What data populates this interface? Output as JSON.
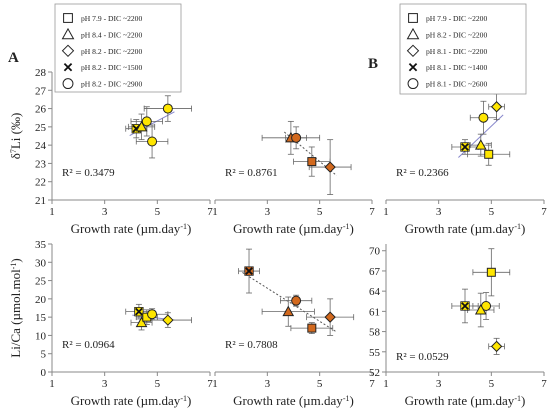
{
  "figure": {
    "panel_labels": [
      "A",
      "B"
    ],
    "legend_a": [
      {
        "marker": "square",
        "label": "pH 7.9 - DIC ~2200"
      },
      {
        "marker": "triangle",
        "label": "pH 8.4 - DIC ~2200"
      },
      {
        "marker": "diamond",
        "label": "pH 8.2 - DIC ~2200"
      },
      {
        "marker": "cross",
        "label": "pH 8.2 - DIC ~1500"
      },
      {
        "marker": "circle",
        "label": "pH 8.2 - DIC ~2900"
      }
    ],
    "legend_b": [
      {
        "marker": "square",
        "label": "pH 7.9 - DIC ~2200"
      },
      {
        "marker": "triangle",
        "label": "pH 8.2 - DIC ~2200"
      },
      {
        "marker": "diamond",
        "label": "pH 8.1 - DIC ~2200"
      },
      {
        "marker": "cross",
        "label": "pH 8.1 - DIC ~1400"
      },
      {
        "marker": "circle",
        "label": "pH 8.1 - DIC ~2600"
      }
    ],
    "colors": {
      "yellow": "#FFE600",
      "orange": "#D2691E",
      "axis": "#888888",
      "trend": "#8888cc"
    }
  },
  "chart_data": [
    {
      "type": "scatter",
      "panel": "A",
      "position": "top-left",
      "xlabel": "Growth rate (µm.day-1)",
      "ylabel": "δ7Li (‰)",
      "xlim": [
        1,
        7
      ],
      "ylim": [
        21,
        28
      ],
      "xticks": [
        1,
        3,
        5,
        7
      ],
      "yticks": [
        21,
        22,
        23,
        24,
        25,
        26,
        27,
        28
      ],
      "annotation": "R² = 0.3479",
      "fill": "yellow",
      "trend": true,
      "points": [
        {
          "marker": "circle",
          "x": 4.6,
          "y": 25.3,
          "xerr": 0.6,
          "yerr": 0.8
        },
        {
          "marker": "circle",
          "x": 5.4,
          "y": 26.0,
          "xerr": 0.9,
          "yerr": 0.7
        },
        {
          "marker": "circle",
          "x": 4.8,
          "y": 24.2,
          "xerr": 0.6,
          "yerr": 0.9
        },
        {
          "marker": "cross",
          "x": 4.2,
          "y": 24.9,
          "xerr": 0.4,
          "yerr": 0.5
        },
        {
          "marker": "triangle",
          "x": 4.4,
          "y": 25.0,
          "xerr": 0.5,
          "yerr": 0.7
        }
      ]
    },
    {
      "type": "scatter",
      "panel": "A",
      "position": "top-middle",
      "xlabel": "Growth rate (µm.day-1)",
      "ylabel": "",
      "xlim": [
        1,
        7
      ],
      "ylim": [
        21,
        28
      ],
      "xticks": [
        1,
        3,
        5,
        7
      ],
      "yticks": [],
      "annotation": "R² = 0.8761",
      "fill": "orange",
      "trend": true,
      "points": [
        {
          "marker": "triangle",
          "x": 3.9,
          "y": 24.4,
          "xerr": 1.1,
          "yerr": 0.9
        },
        {
          "marker": "circle",
          "x": 4.1,
          "y": 24.4,
          "xerr": 0.4,
          "yerr": 0.6
        },
        {
          "marker": "square",
          "x": 4.7,
          "y": 23.1,
          "xerr": 0.7,
          "yerr": 0.8
        },
        {
          "marker": "diamond",
          "x": 5.4,
          "y": 22.8,
          "xerr": 0.8,
          "yerr": 1.5
        }
      ]
    },
    {
      "type": "scatter",
      "panel": "B",
      "position": "top-right",
      "xlabel": "Growth rate (µm.day-1)",
      "ylabel": "",
      "xlim": [
        1,
        7
      ],
      "ylim": [
        21,
        28
      ],
      "xticks": [
        1,
        3,
        5,
        7
      ],
      "yticks": [],
      "annotation": "R² = 0.2366",
      "fill": "yellow",
      "trend": true,
      "points": [
        {
          "marker": "diamond",
          "x": 5.2,
          "y": 26.1,
          "xerr": 0.3,
          "yerr": 0.7
        },
        {
          "marker": "circle",
          "x": 4.7,
          "y": 25.5,
          "xerr": 0.5,
          "yerr": 0.9
        },
        {
          "marker": "cross",
          "x": 4.0,
          "y": 23.9,
          "xerr": 0.5,
          "yerr": 0.4
        },
        {
          "marker": "triangle",
          "x": 4.6,
          "y": 24.0,
          "xerr": 0.4,
          "yerr": 0.6
        },
        {
          "marker": "square",
          "x": 4.9,
          "y": 23.5,
          "xerr": 0.8,
          "yerr": 0.6
        }
      ]
    },
    {
      "type": "scatter",
      "panel": "A",
      "position": "bottom-left",
      "xlabel": "Growth rate (µm.day-1)",
      "ylabel": "Li/Ca (µmol.mol-1)",
      "xlim": [
        1,
        7
      ],
      "ylim": [
        0,
        35
      ],
      "xticks": [
        1,
        3,
        5,
        7
      ],
      "yticks": [
        0,
        5,
        10,
        15,
        20,
        25,
        30,
        35
      ],
      "annotation": "R² = 0.0964",
      "fill": "yellow",
      "trend": true,
      "points": [
        {
          "marker": "cross",
          "x": 4.3,
          "y": 16.5,
          "xerr": 0.5,
          "yerr": 2.0
        },
        {
          "marker": "triangle",
          "x": 4.4,
          "y": 13.5,
          "xerr": 0.4,
          "yerr": 2.0
        },
        {
          "marker": "square",
          "x": 4.6,
          "y": 15.0,
          "xerr": 0.4,
          "yerr": 2.0
        },
        {
          "marker": "circle",
          "x": 4.8,
          "y": 15.8,
          "xerr": 0.6,
          "yerr": 1.5
        },
        {
          "marker": "diamond",
          "x": 5.4,
          "y": 14.2,
          "xerr": 0.9,
          "yerr": 2.0
        }
      ]
    },
    {
      "type": "scatter",
      "panel": "A",
      "position": "bottom-middle",
      "xlabel": "Growth rate (µm.day-1)",
      "ylabel": "",
      "xlim": [
        1,
        7
      ],
      "ylim": [
        0,
        35
      ],
      "xticks": [
        1,
        3,
        5,
        7
      ],
      "yticks": [],
      "annotation": "R² = 0.7808",
      "fill": "orange",
      "trend": true,
      "points": [
        {
          "marker": "cross",
          "x": 2.3,
          "y": 27.6,
          "xerr": 0.4,
          "yerr": 6.0
        },
        {
          "marker": "circle",
          "x": 4.1,
          "y": 19.5,
          "xerr": 0.6,
          "yerr": 1.5
        },
        {
          "marker": "triangle",
          "x": 3.8,
          "y": 16.5,
          "xerr": 1.0,
          "yerr": 4.0
        },
        {
          "marker": "diamond",
          "x": 5.4,
          "y": 15.0,
          "xerr": 0.9,
          "yerr": 5.0
        },
        {
          "marker": "square",
          "x": 4.7,
          "y": 12.0,
          "xerr": 0.8,
          "yerr": 1.5
        }
      ]
    },
    {
      "type": "scatter",
      "panel": "B",
      "position": "bottom-right",
      "xlabel": "Growth rate (µm.day-1)",
      "ylabel": "",
      "xlim": [
        1,
        7
      ],
      "ylim": [
        52,
        71
      ],
      "xticks": [
        1,
        3,
        5,
        7
      ],
      "yticks": [
        52,
        55,
        58,
        61,
        64,
        67,
        70
      ],
      "annotation": "R² = 0.0529",
      "fill": "yellow",
      "trend": false,
      "points": [
        {
          "marker": "square",
          "x": 5.0,
          "y": 66.8,
          "xerr": 0.7,
          "yerr": 3.5
        },
        {
          "marker": "circle",
          "x": 4.8,
          "y": 61.8,
          "xerr": 0.5,
          "yerr": 2.0
        },
        {
          "marker": "cross",
          "x": 4.0,
          "y": 61.8,
          "xerr": 0.5,
          "yerr": 2.5
        },
        {
          "marker": "triangle",
          "x": 4.6,
          "y": 61.2,
          "xerr": 0.5,
          "yerr": 2.5
        },
        {
          "marker": "diamond",
          "x": 5.2,
          "y": 55.8,
          "xerr": 0.3,
          "yerr": 1.2
        }
      ]
    }
  ]
}
